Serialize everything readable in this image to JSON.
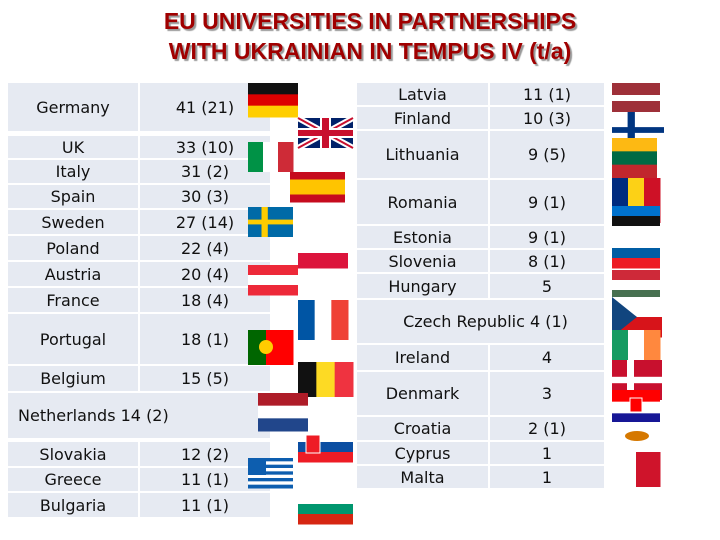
{
  "title": [
    "EU UNIVERSITIES IN PARTNERSHIPS",
    "WITH UKRAINIAN IN TEMPUS IV (t/a)"
  ],
  "left_table": {
    "rows": [
      [
        "Germany",
        "41 (21)"
      ],
      [
        "UK",
        "33 (10)"
      ],
      [
        "Italy",
        "31 (2)"
      ],
      [
        "Spain",
        "30 (3)"
      ],
      [
        "Sweden",
        "27 (14)"
      ],
      [
        "Poland",
        "22 (4)"
      ],
      [
        "Austria",
        "20 (4)"
      ],
      [
        "France",
        "18 (4)"
      ],
      [
        "Portugal",
        "18 (1)"
      ],
      [
        "Belgium",
        "15 (5)"
      ],
      [
        "Netherlands 14 (2)"
      ],
      [
        "Slovakia",
        "12 (2)"
      ],
      [
        "Greece",
        "11 (1)"
      ],
      [
        "Bulgaria",
        "11 (1)"
      ]
    ]
  },
  "right_table": {
    "rows": [
      [
        "Latvia",
        "11 (1)"
      ],
      [
        "Finland",
        "10 (3)"
      ],
      [
        "Lithuania",
        "9 (5)"
      ],
      [
        "Romania",
        "9 (1)"
      ],
      [
        "Estonia",
        "9 (1)"
      ],
      [
        "Slovenia",
        "8 (1)"
      ],
      [
        "Hungary",
        "5"
      ],
      [
        "Czech Republic 4 (1)"
      ],
      [
        "Ireland",
        "4"
      ],
      [
        "Denmark",
        "3"
      ],
      [
        "Croatia",
        "2 (1)"
      ],
      [
        "Cyprus",
        "1"
      ],
      [
        "Malta",
        "1"
      ]
    ]
  }
}
